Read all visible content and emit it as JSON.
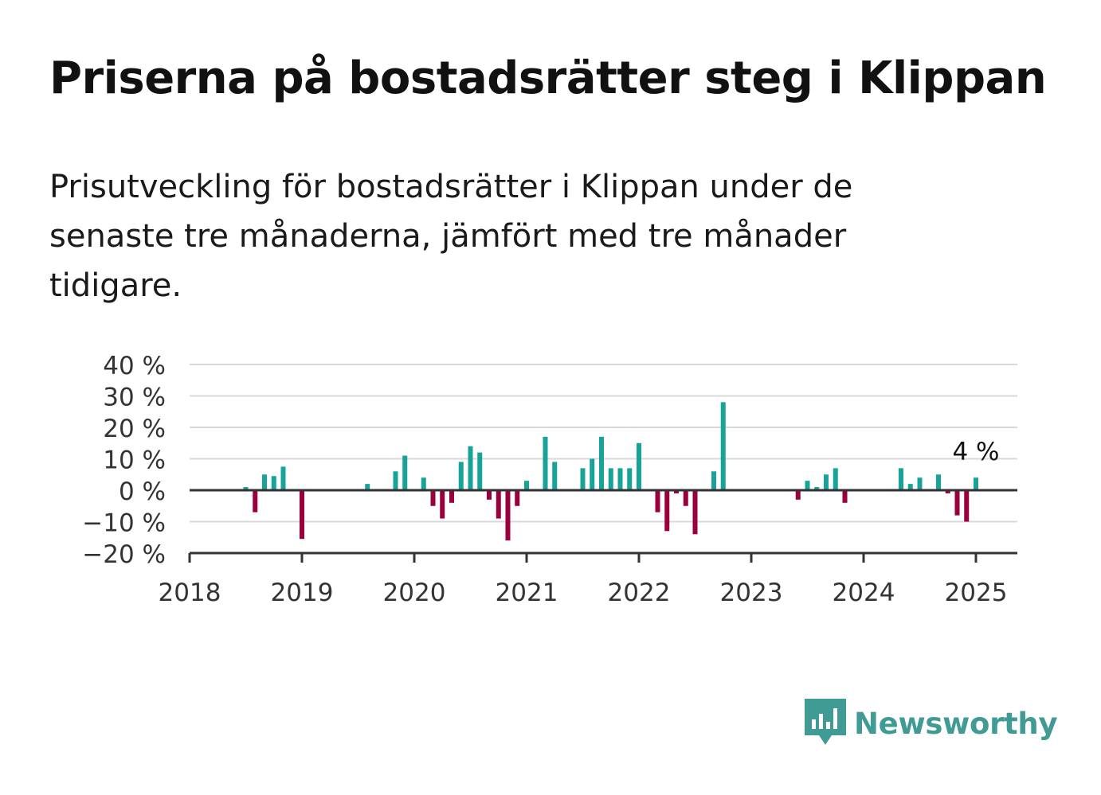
{
  "header": {
    "title": "Priserna på bostadsrätter steg i Klippan",
    "subtitle": "Prisutveckling för bostadsrätter i Klippan under de senaste tre månaderna, jämfört med tre månader tidigare."
  },
  "brand": {
    "name": "Newsworthy",
    "logo_icon": "bar-chart-speech-bubble-icon",
    "color": "#3f9b94"
  },
  "colors": {
    "positive": "#17a398",
    "negative": "#99003d",
    "grid": "#d9d9d9",
    "axis": "#333333"
  },
  "chart_data": {
    "type": "bar",
    "title": "Priserna på bostadsrätter steg i Klippan",
    "ylim": [
      -20,
      40
    ],
    "yticks": [
      40,
      30,
      20,
      10,
      0,
      -10,
      -20
    ],
    "ytick_labels": [
      "40 %",
      "30 %",
      "20 %",
      "10 %",
      "0 %",
      "−10 %",
      "−20 %"
    ],
    "xlim": [
      "2018-01",
      "2025-05"
    ],
    "xtick_labels": [
      "2018",
      "2019",
      "2020",
      "2021",
      "2022",
      "2023",
      "2024",
      "2025"
    ],
    "grid": true,
    "annotation": {
      "label": "4 %",
      "date": "2025-01"
    },
    "series": [
      {
        "values": [
          {
            "date": "2018-07",
            "value": 1
          },
          {
            "date": "2018-08",
            "value": -7
          },
          {
            "date": "2018-09",
            "value": 5
          },
          {
            "date": "2018-10",
            "value": 4.5
          },
          {
            "date": "2018-11",
            "value": 7.5
          },
          {
            "date": "2019-01",
            "value": -15.5
          },
          {
            "date": "2019-08",
            "value": 2
          },
          {
            "date": "2019-11",
            "value": 6
          },
          {
            "date": "2019-12",
            "value": 11
          },
          {
            "date": "2020-02",
            "value": 4
          },
          {
            "date": "2020-03",
            "value": -5
          },
          {
            "date": "2020-04",
            "value": -9
          },
          {
            "date": "2020-05",
            "value": -4
          },
          {
            "date": "2020-06",
            "value": 9
          },
          {
            "date": "2020-07",
            "value": 14
          },
          {
            "date": "2020-08",
            "value": 12
          },
          {
            "date": "2020-09",
            "value": -3
          },
          {
            "date": "2020-10",
            "value": -9
          },
          {
            "date": "2020-11",
            "value": -16
          },
          {
            "date": "2020-12",
            "value": -5
          },
          {
            "date": "2021-01",
            "value": 3
          },
          {
            "date": "2021-03",
            "value": 17
          },
          {
            "date": "2021-04",
            "value": 9
          },
          {
            "date": "2021-07",
            "value": 7
          },
          {
            "date": "2021-08",
            "value": 10
          },
          {
            "date": "2021-09",
            "value": 17
          },
          {
            "date": "2021-10",
            "value": 7
          },
          {
            "date": "2021-11",
            "value": 7
          },
          {
            "date": "2021-12",
            "value": 7
          },
          {
            "date": "2022-01",
            "value": 15
          },
          {
            "date": "2022-03",
            "value": -7
          },
          {
            "date": "2022-04",
            "value": -13
          },
          {
            "date": "2022-05",
            "value": -1
          },
          {
            "date": "2022-06",
            "value": -5
          },
          {
            "date": "2022-07",
            "value": -14
          },
          {
            "date": "2022-09",
            "value": 6
          },
          {
            "date": "2022-10",
            "value": 28
          },
          {
            "date": "2023-06",
            "value": -3
          },
          {
            "date": "2023-07",
            "value": 3
          },
          {
            "date": "2023-08",
            "value": 1
          },
          {
            "date": "2023-09",
            "value": 5
          },
          {
            "date": "2023-10",
            "value": 7
          },
          {
            "date": "2023-11",
            "value": -4
          },
          {
            "date": "2024-05",
            "value": 7
          },
          {
            "date": "2024-06",
            "value": 2
          },
          {
            "date": "2024-07",
            "value": 4
          },
          {
            "date": "2024-09",
            "value": 5
          },
          {
            "date": "2024-10",
            "value": -1
          },
          {
            "date": "2024-11",
            "value": -8
          },
          {
            "date": "2024-12",
            "value": -10
          },
          {
            "date": "2025-01",
            "value": 4
          }
        ]
      }
    ]
  }
}
